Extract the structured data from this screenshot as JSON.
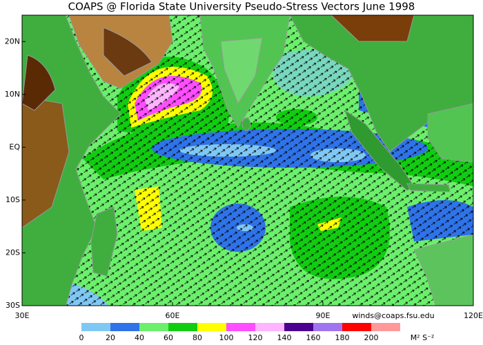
{
  "title": "COAPS @ Florida State University Pseudo-Stress Vectors  June 1998",
  "credit": "winds@coaps.fsu.edu",
  "units": "M² S⁻²",
  "map": {
    "xlim": [
      30,
      120
    ],
    "ylim": [
      -30,
      25
    ],
    "lon_ticks": [
      {
        "value": 30,
        "label": "30E"
      },
      {
        "value": 60,
        "label": "60E"
      },
      {
        "value": 90,
        "label": "90E"
      },
      {
        "value": 120,
        "label": "120E"
      }
    ],
    "lat_ticks": [
      {
        "value": 20,
        "label": "20N"
      },
      {
        "value": 10,
        "label": "10N"
      },
      {
        "value": 0,
        "label": "EQ"
      },
      {
        "value": -10,
        "label": "10S"
      },
      {
        "value": -20,
        "label": "20S"
      },
      {
        "value": -30,
        "label": "30S"
      }
    ]
  },
  "colorbar": {
    "ticks": [
      0,
      20,
      40,
      60,
      80,
      100,
      120,
      140,
      160,
      180,
      200
    ],
    "colors": [
      "#80c8f4",
      "#2f73e8",
      "#6cef6c",
      "#12cc12",
      "#ffff00",
      "#ff4dff",
      "#ffb4ff",
      "#4c0090",
      "#a074f0",
      "#ff0000",
      "#ff9898"
    ]
  }
}
